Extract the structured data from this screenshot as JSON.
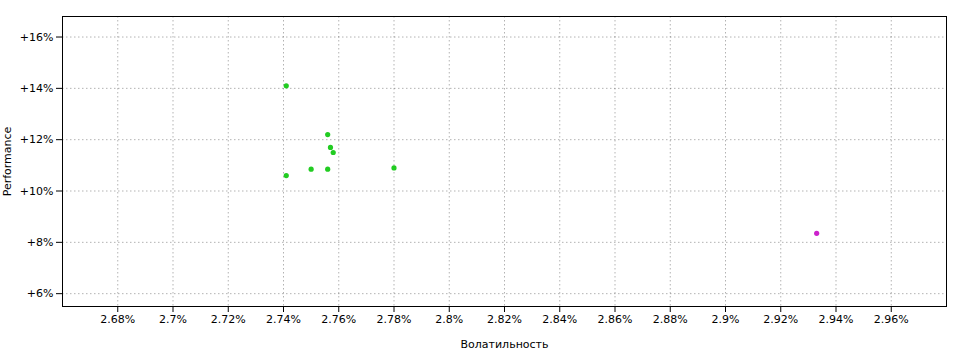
{
  "chart_data": {
    "type": "scatter",
    "xlabel": "Волатильность",
    "ylabel": "Performance",
    "xlim": [
      2.66,
      2.98
    ],
    "ylim": [
      5.5,
      16.8
    ],
    "xticks": [
      {
        "value": 2.68,
        "label": "2.68%"
      },
      {
        "value": 2.7,
        "label": "2.7%"
      },
      {
        "value": 2.72,
        "label": "2.72%"
      },
      {
        "value": 2.74,
        "label": "2.74%"
      },
      {
        "value": 2.76,
        "label": "2.76%"
      },
      {
        "value": 2.78,
        "label": "2.78%"
      },
      {
        "value": 2.8,
        "label": "2.8%"
      },
      {
        "value": 2.82,
        "label": "2.82%"
      },
      {
        "value": 2.84,
        "label": "2.84%"
      },
      {
        "value": 2.86,
        "label": "2.86%"
      },
      {
        "value": 2.88,
        "label": "2.88%"
      },
      {
        "value": 2.9,
        "label": "2.9%"
      },
      {
        "value": 2.92,
        "label": "2.92%"
      },
      {
        "value": 2.94,
        "label": "2.94%"
      },
      {
        "value": 2.96,
        "label": "2.96%"
      }
    ],
    "yticks": [
      {
        "value": 6,
        "label": "+6%"
      },
      {
        "value": 8,
        "label": "+8%"
      },
      {
        "value": 10,
        "label": "+10%"
      },
      {
        "value": 12,
        "label": "+12%"
      },
      {
        "value": 14,
        "label": "+14%"
      },
      {
        "value": 16,
        "label": "+16%"
      }
    ],
    "grid": true,
    "series": [
      {
        "color": "#22cc22",
        "x": [
          2.741,
          2.756,
          2.757,
          2.758,
          2.75,
          2.756,
          2.78,
          2.741
        ],
        "values": [
          14.1,
          12.2,
          11.7,
          11.5,
          10.85,
          10.85,
          10.9,
          10.6
        ]
      },
      {
        "color": "#cc22cc",
        "x": [
          2.933
        ],
        "values": [
          8.35
        ]
      }
    ]
  }
}
